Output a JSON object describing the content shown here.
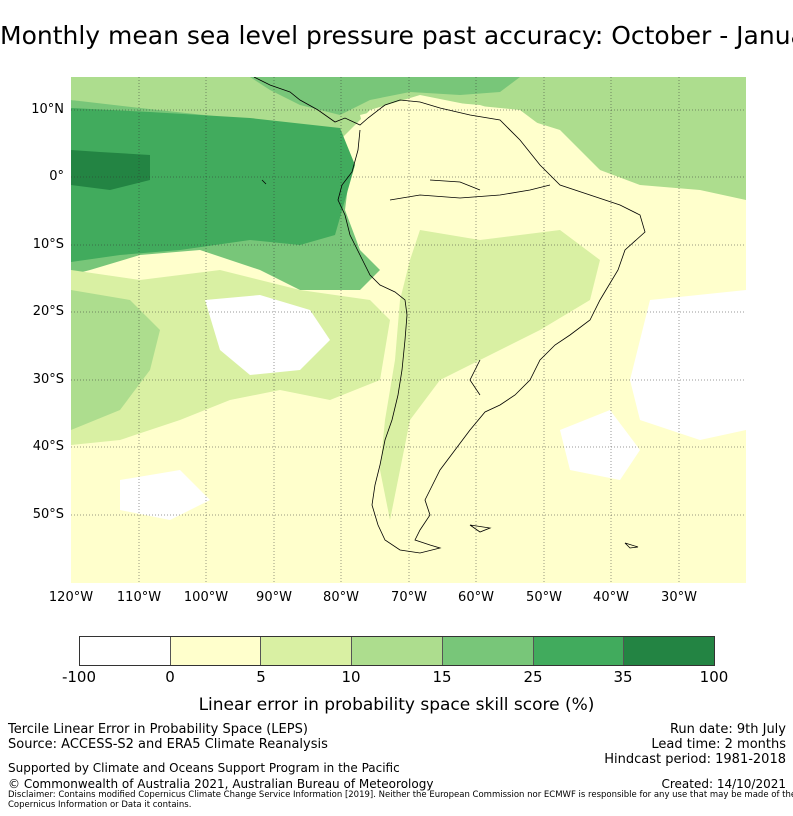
{
  "title": "Monthly mean sea level pressure past accuracy: October - January",
  "map": {
    "lat_ticks": [
      "10°N",
      "0°",
      "10°S",
      "20°S",
      "30°S",
      "40°S",
      "50°S"
    ],
    "lon_ticks": [
      "120°W",
      "110°W",
      "100°W",
      "90°W",
      "80°W",
      "70°W",
      "60°W",
      "50°W",
      "40°W",
      "30°W"
    ],
    "lon_range": [
      -120,
      -20
    ],
    "lat_range": [
      -60,
      15
    ],
    "grid": true
  },
  "colorbar": {
    "ticks": [
      "-100",
      "0",
      "5",
      "10",
      "15",
      "25",
      "35",
      "100"
    ],
    "colors": [
      "#ffffff",
      "#ffffcc",
      "#d9f0a3",
      "#addd8e",
      "#78c679",
      "#41ab5d",
      "#238443"
    ],
    "label": "Linear error in probability space skill score (%)"
  },
  "info": {
    "line1": "Tercile Linear Error in Probability Space (LEPS)",
    "line2": "Source: ACCESS-S2 and ERA5 Climate Reanalysis",
    "run_date": "Run date: 9th July",
    "lead_time": "Lead time: 2 months",
    "hindcast": "Hindcast period: 1981-2018",
    "supported": "Supported by Climate and Oceans Support Program in the Pacific",
    "copyright": "© Commonwealth of Australia 2021, Australian Bureau of Meteorology",
    "created": "Created: 14/10/2021",
    "disclaimer": "Disclaimer: Contains modified Copernicus Climate Change Service Information [2019]. Neither the European Commission nor ECMWF is responsible for any use that may be made of the Copernicus Information or Data it contains."
  }
}
